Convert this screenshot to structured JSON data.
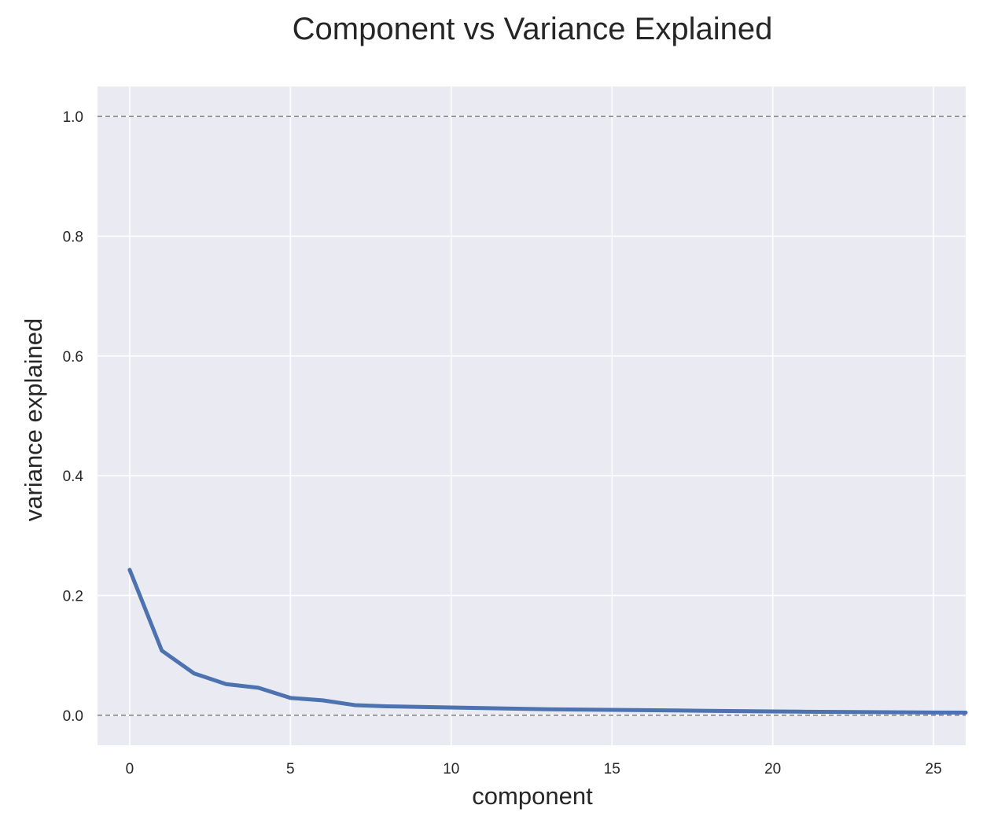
{
  "chart_data": {
    "type": "line",
    "title": "Component vs Variance Explained",
    "xlabel": "component",
    "ylabel": "variance explained",
    "xlim": [
      -1,
      26
    ],
    "ylim": [
      -0.05,
      1.05
    ],
    "xticks": [
      0,
      5,
      10,
      15,
      20,
      25
    ],
    "xtick_labels": [
      "0",
      "5",
      "10",
      "15",
      "20",
      "25"
    ],
    "yticks": [
      0.0,
      0.2,
      0.4,
      0.6,
      0.8,
      1.0
    ],
    "ytick_labels": [
      "0.0",
      "0.2",
      "0.4",
      "0.6",
      "0.8",
      "1.0"
    ],
    "reference_lines": [
      0.0,
      1.0
    ],
    "grid": true,
    "series": [
      {
        "x": [
          0,
          1,
          2,
          3,
          4,
          5,
          6,
          7,
          8,
          9,
          10,
          11,
          12,
          13,
          14,
          15,
          16,
          17,
          18,
          19,
          20,
          21,
          22,
          23,
          24,
          25,
          26
        ],
        "values": [
          0.243,
          0.108,
          0.07,
          0.052,
          0.046,
          0.029,
          0.025,
          0.017,
          0.015,
          0.014,
          0.013,
          0.012,
          0.011,
          0.01,
          0.0095,
          0.009,
          0.0085,
          0.008,
          0.0075,
          0.007,
          0.0065,
          0.006,
          0.0057,
          0.0053,
          0.005,
          0.0047,
          0.0045
        ],
        "color": "#4c72b0"
      }
    ]
  },
  "colors": {
    "plot_background": "#eaeaf2",
    "grid": "#ffffff",
    "reference_line": "#7f7f7f",
    "line": "#4c72b0"
  }
}
